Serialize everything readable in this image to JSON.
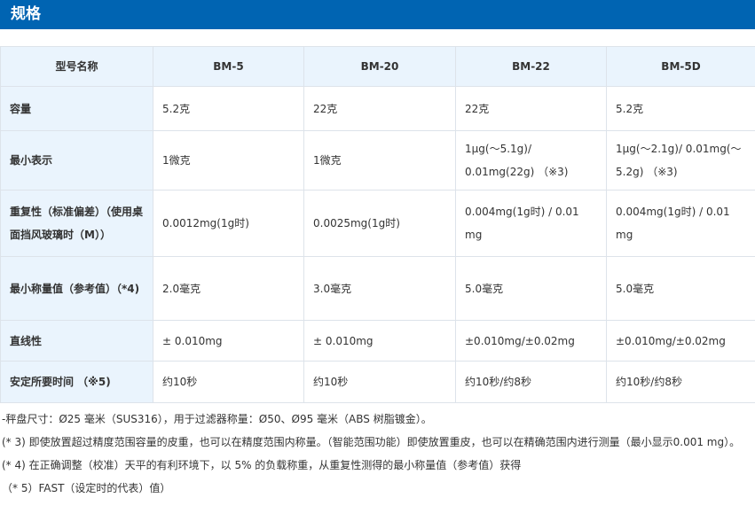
{
  "header": {
    "title": "规格"
  },
  "table": {
    "headers": [
      "型号名称",
      "BM-5",
      "BM-20",
      "BM-22",
      "BM-5D"
    ],
    "rows": [
      {
        "label": "容量",
        "cells": [
          "5.2克",
          "22克",
          "22克",
          "5.2克"
        ]
      },
      {
        "label": "最小表示",
        "cells": [
          "1微克",
          "1微克",
          "1μg(～5.1g)/ 0.01mg(22g) （※3)",
          "1μg(～2.1g)/ 0.01mg(～5.2g) （※3)"
        ]
      },
      {
        "label": "重复性（标准偏差）（使用桌面挡风玻璃时（M））",
        "cells": [
          "0.0012mg(1g时)",
          "0.0025mg(1g时)",
          "0.004mg(1g时) / 0.01 mg",
          "0.004mg(1g时) / 0.01 mg"
        ]
      },
      {
        "label": "最小称量值（参考值）（*4)",
        "cells": [
          "2.0毫克",
          "3.0毫克",
          "5.0毫克",
          "5.0毫克"
        ]
      },
      {
        "label": "直线性",
        "cells": [
          "± 0.010mg",
          "± 0.010mg",
          "±0.010mg/±0.02mg",
          "±0.010mg/±0.02mg"
        ]
      },
      {
        "label": "安定所要时间 （※5)",
        "cells": [
          "约10秒",
          "约10秒",
          "约10秒/约8秒",
          "约10秒/约8秒"
        ]
      }
    ]
  },
  "notes": [
    "-秤盘尺寸：Ø25 毫米（SUS316），用于过滤器称量：Ø50、Ø95 毫米（ABS 树脂镀金）。",
    "(* 3) 即使放置超过精度范围容量的皮重，也可以在精度范围内称量。（智能范围功能）即使放置重皮，也可以在精确范围内进行测量（最小显示0.001 mg）。",
    "(* 4) 在正确调整（校准）天平的有利环境下，以 5% 的负载称重，从重复性测得的最小称量值（参考值）获得",
    "（* 5）FAST（设定时的代表）值）"
  ]
}
